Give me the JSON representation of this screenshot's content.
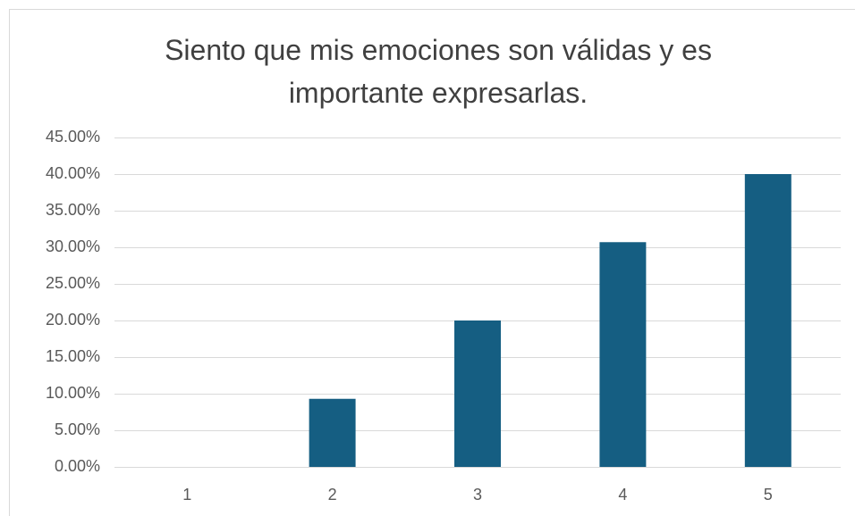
{
  "chart_data": {
    "type": "bar",
    "title": "Siento que mis emociones son válidas y es importante expresarlas.",
    "categories": [
      "1",
      "2",
      "3",
      "4",
      "5"
    ],
    "values": [
      0,
      9.3,
      20,
      30.7,
      40
    ],
    "color": "#155e82",
    "ylim": [
      0,
      45
    ],
    "yticks": [
      {
        "value": 0,
        "label": "0.00%"
      },
      {
        "value": 5,
        "label": "5.00%"
      },
      {
        "value": 10,
        "label": "10.00%"
      },
      {
        "value": 15,
        "label": "15.00%"
      },
      {
        "value": 20,
        "label": "20.00%"
      },
      {
        "value": 25,
        "label": "25.00%"
      },
      {
        "value": 30,
        "label": "30.00%"
      },
      {
        "value": 35,
        "label": "35.00%"
      },
      {
        "value": 40,
        "label": "40.00%"
      },
      {
        "value": 45,
        "label": "45.00%"
      }
    ],
    "grid": true
  }
}
